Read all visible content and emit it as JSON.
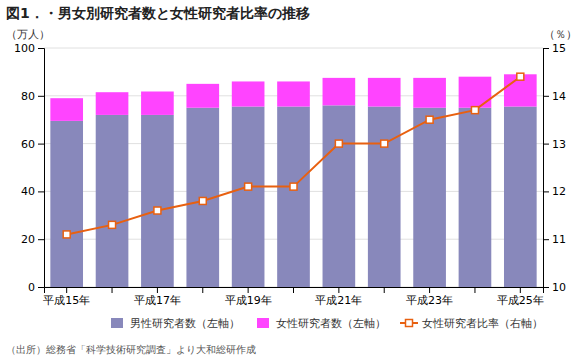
{
  "chart_data": {
    "type": "bar",
    "title": "図1．・男女別研究者数と女性研究者比率の推移",
    "source": "（出所）総務省「科学技術研究調査」より大和総研作成",
    "y_label": "（万人）",
    "y2_label": "（％）",
    "categories": [
      "平成15年",
      null,
      "平成17年",
      null,
      "平成19年",
      null,
      "平成21年",
      null,
      "平成23年",
      null,
      "平成25年"
    ],
    "stacked": true,
    "series": [
      {
        "name": "男性研究者数（左軸）",
        "color": "#8888bb",
        "values": [
          69.5,
          72.0,
          72.0,
          75.0,
          75.5,
          75.5,
          76.0,
          75.5,
          75.0,
          75.0,
          75.5
        ]
      },
      {
        "name": "女性研究者数（左軸）",
        "color": "#ff44ff",
        "values": [
          9.5,
          9.5,
          9.8,
          10.0,
          10.5,
          10.5,
          11.5,
          12.0,
          12.5,
          13.0,
          13.5
        ]
      },
      {
        "name": "女性研究者比率（右軸）",
        "type": "line",
        "axis": "y2",
        "color": "#e86010",
        "marker": "square",
        "values": [
          11.1,
          11.3,
          11.6,
          11.8,
          12.1,
          12.1,
          13.0,
          13.0,
          13.5,
          13.7,
          14.4
        ]
      }
    ],
    "ylim": [
      0,
      100
    ],
    "yticks": [
      0,
      20,
      40,
      60,
      80,
      100
    ],
    "y2lim": [
      10,
      15
    ],
    "y2ticks": [
      10,
      11,
      12,
      13,
      14,
      15
    ],
    "grid": true,
    "legend": "bottom"
  }
}
